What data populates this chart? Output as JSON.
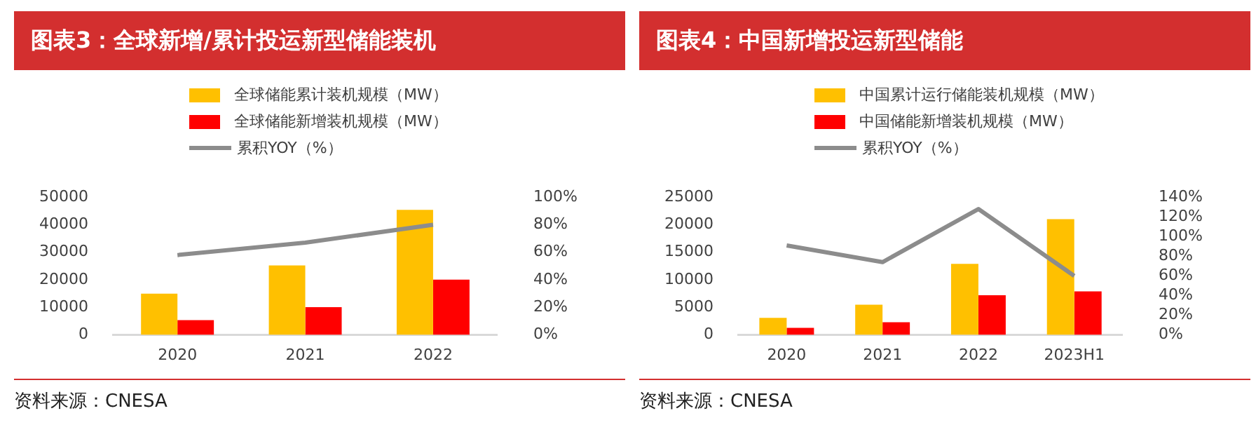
{
  "chart_data": [
    {
      "type": "bar",
      "title": "图表3：全球新增/累计投运新型储能装机",
      "categories": [
        "2020",
        "2021",
        "2022"
      ],
      "series": [
        {
          "name": "全球储能累计装机规模（MW）",
          "color": "#ffc000",
          "values": [
            15000,
            25200,
            45400
          ]
        },
        {
          "name": "全球储能新增装机规模（MW）",
          "color": "#ff0000",
          "values": [
            5400,
            10100,
            20100
          ]
        },
        {
          "name": "累积YOY（%）",
          "type": "line",
          "axis": "y2",
          "color": "#8c8c8c",
          "values": [
            58,
            67,
            80
          ]
        }
      ],
      "ylim": [
        0,
        50000
      ],
      "yticks": [
        0,
        10000,
        20000,
        30000,
        40000,
        50000
      ],
      "y2lim": [
        0,
        100
      ],
      "y2ticks": [
        {
          "value": 0,
          "label": "0%"
        },
        {
          "value": 20,
          "label": "20%"
        },
        {
          "value": 40,
          "label": "40%"
        },
        {
          "value": 60,
          "label": "60%"
        },
        {
          "value": 80,
          "label": "80%"
        },
        {
          "value": 100,
          "label": "100%"
        }
      ],
      "grid": false,
      "legend": "top",
      "marker": "none",
      "annotations": [
        "资料来源：CNESA"
      ]
    },
    {
      "type": "bar",
      "title": "图表4：中国新增投运新型储能",
      "categories": [
        "2020",
        "2021",
        "2022",
        "2023H1"
      ],
      "series": [
        {
          "name": "中国累计运行储能装机规模（MW）",
          "color": "#ffc000",
          "values": [
            3100,
            5500,
            12900,
            21000
          ]
        },
        {
          "name": "中国储能新增装机规模（MW）",
          "color": "#ff0000",
          "values": [
            1300,
            2300,
            7200,
            7900
          ]
        },
        {
          "name": "累积YOY（%）",
          "type": "line",
          "axis": "y2",
          "color": "#8c8c8c",
          "values": [
            91,
            74,
            128,
            60
          ]
        }
      ],
      "ylim": [
        0,
        25000
      ],
      "yticks": [
        0,
        5000,
        10000,
        15000,
        20000,
        25000
      ],
      "y2lim": [
        0,
        140
      ],
      "y2ticks": [
        {
          "value": 0,
          "label": "0%"
        },
        {
          "value": 20,
          "label": "20%"
        },
        {
          "value": 40,
          "label": "40%"
        },
        {
          "value": 60,
          "label": "60%"
        },
        {
          "value": 80,
          "label": "80%"
        },
        {
          "value": 100,
          "label": "100%"
        },
        {
          "value": 120,
          "label": "120%"
        },
        {
          "value": 140,
          "label": "140%"
        }
      ],
      "grid": false,
      "legend": "top",
      "marker": "none",
      "annotations": [
        "资料来源：CNESA"
      ]
    }
  ]
}
